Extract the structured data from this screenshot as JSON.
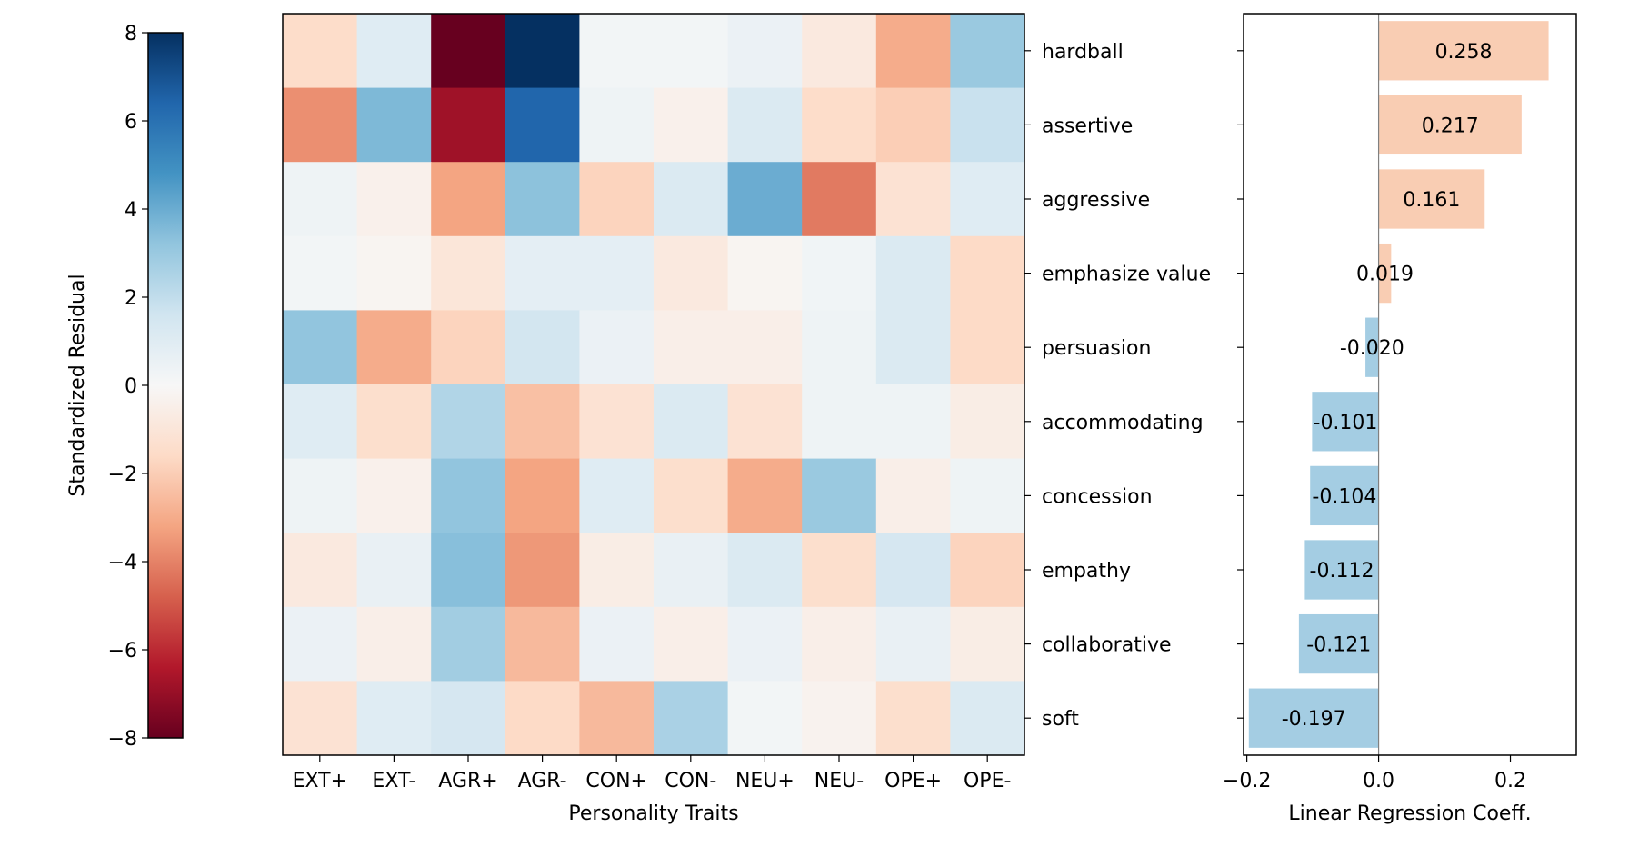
{
  "chart_data": [
    {
      "type": "heatmap",
      "title": "",
      "xlabel": "Personality Traits",
      "ylabel": "",
      "x_categories": [
        "EXT+",
        "EXT-",
        "AGR+",
        "AGR-",
        "CON+",
        "CON-",
        "NEU+",
        "NEU-",
        "OPE+",
        "OPE-"
      ],
      "y_categories": [
        "hardball",
        "assertive",
        "aggressive",
        "emphasize value",
        "persuasion",
        "accommodating",
        "concession",
        "empathy",
        "collaborative",
        "soft"
      ],
      "values": [
        [
          -1.5,
          1.0,
          -8.0,
          8.0,
          0.2,
          0.2,
          0.5,
          -0.8,
          -3.0,
          3.0
        ],
        [
          -3.7,
          3.6,
          -6.8,
          6.4,
          0.4,
          -0.4,
          1.2,
          -1.5,
          -2.0,
          1.8
        ],
        [
          0.4,
          -0.4,
          -3.2,
          3.3,
          -1.8,
          1.2,
          4.0,
          -4.2,
          -1.2,
          1.0
        ],
        [
          0.2,
          -0.2,
          -1.0,
          0.8,
          0.8,
          -0.8,
          -0.2,
          0.3,
          1.2,
          -1.6
        ],
        [
          3.2,
          -3.0,
          -1.8,
          1.5,
          0.5,
          -0.5,
          -0.5,
          0.4,
          1.2,
          -1.6
        ],
        [
          1.0,
          -1.4,
          2.4,
          -2.4,
          -1.2,
          1.2,
          -1.2,
          0.4,
          0.4,
          -0.6
        ],
        [
          0.4,
          -0.4,
          3.2,
          -3.2,
          1.0,
          -1.4,
          -3.0,
          3.0,
          -0.5,
          0.4
        ],
        [
          -0.8,
          0.6,
          3.4,
          -3.5,
          -0.6,
          0.6,
          1.2,
          -1.4,
          1.4,
          -1.8
        ],
        [
          0.5,
          -0.5,
          2.8,
          -2.6,
          0.5,
          -0.5,
          0.5,
          -0.5,
          0.6,
          -0.6
        ],
        [
          -1.2,
          1.0,
          1.4,
          -1.6,
          -2.6,
          2.6,
          0.2,
          -0.3,
          -1.4,
          1.2
        ]
      ],
      "colormap": "RdBu",
      "vmin": -8,
      "vmax": 8,
      "colorbar": {
        "label": "Standardized Residual",
        "ticks": [
          8,
          6,
          4,
          2,
          0,
          -2,
          -4,
          -6,
          -8
        ],
        "tick_labels": [
          "8",
          "6",
          "4",
          "2",
          "0",
          "−2",
          "−4",
          "−6",
          "−8"
        ]
      },
      "grid": false
    },
    {
      "type": "bar",
      "orientation": "horizontal",
      "xlabel": "Linear Regression Coeff.",
      "categories": [
        "hardball",
        "assertive",
        "aggressive",
        "emphasize value",
        "persuasion",
        "accommodating",
        "concession",
        "empathy",
        "collaborative",
        "soft"
      ],
      "values": [
        0.258,
        0.217,
        0.161,
        0.019,
        -0.02,
        -0.101,
        -0.104,
        -0.112,
        -0.121,
        -0.197
      ],
      "value_labels": [
        "0.258",
        "0.217",
        "0.161",
        "0.019",
        "-0.020",
        "-0.101",
        "-0.104",
        "-0.112",
        "-0.121",
        "-0.197"
      ],
      "xlim": [
        -0.205,
        0.3
      ],
      "xticks": [
        -0.2,
        0.0,
        0.2
      ],
      "xtick_labels": [
        "−0.2",
        "0.0",
        "0.2"
      ],
      "colors": {
        "positive": "#f9cdb3",
        "negative": "#a4cde3",
        "zero_line": "#808080"
      },
      "grid": false
    }
  ]
}
